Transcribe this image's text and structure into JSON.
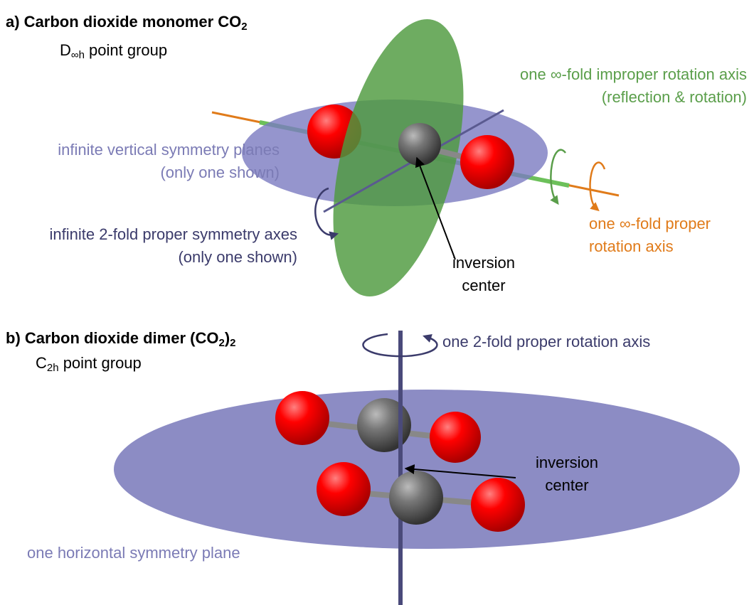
{
  "panels": [
    {
      "title": [
        {
          "text": "a) Carbon dioxide monomer CO"
        },
        {
          "sub": "2"
        }
      ],
      "point_group": [
        {
          "text": "D"
        },
        {
          "sub": "∞h"
        },
        {
          "text": " point group"
        }
      ],
      "labels": [
        {
          "lines": [
            "one ∞-fold improper rotation axis",
            "(reflection & rotation)"
          ]
        },
        {
          "lines": [
            "infinite vertical symmetry planes",
            "(only one shown)"
          ]
        },
        {
          "lines": [
            "infinite 2-fold proper symmetry axes",
            "(only one shown)"
          ]
        },
        {
          "lines": [
            "inversion",
            "center"
          ]
        },
        {
          "lines": [
            "one ∞-fold proper",
            "rotation axis"
          ]
        }
      ]
    },
    {
      "title": [
        {
          "text": "b) Carbon dioxide dimer (CO"
        },
        {
          "sub": "2"
        },
        {
          "text": ")"
        },
        {
          "sub": "2"
        }
      ],
      "point_group": [
        {
          "text": "C"
        },
        {
          "sub": "2h"
        },
        {
          "text": " point group"
        }
      ],
      "labels": [
        {
          "lines": [
            "one 2-fold proper rotation axis"
          ]
        },
        {
          "lines": [
            "inversion",
            "center"
          ]
        },
        {
          "lines": [
            "one horizontal symmetry plane"
          ]
        }
      ]
    }
  ]
}
